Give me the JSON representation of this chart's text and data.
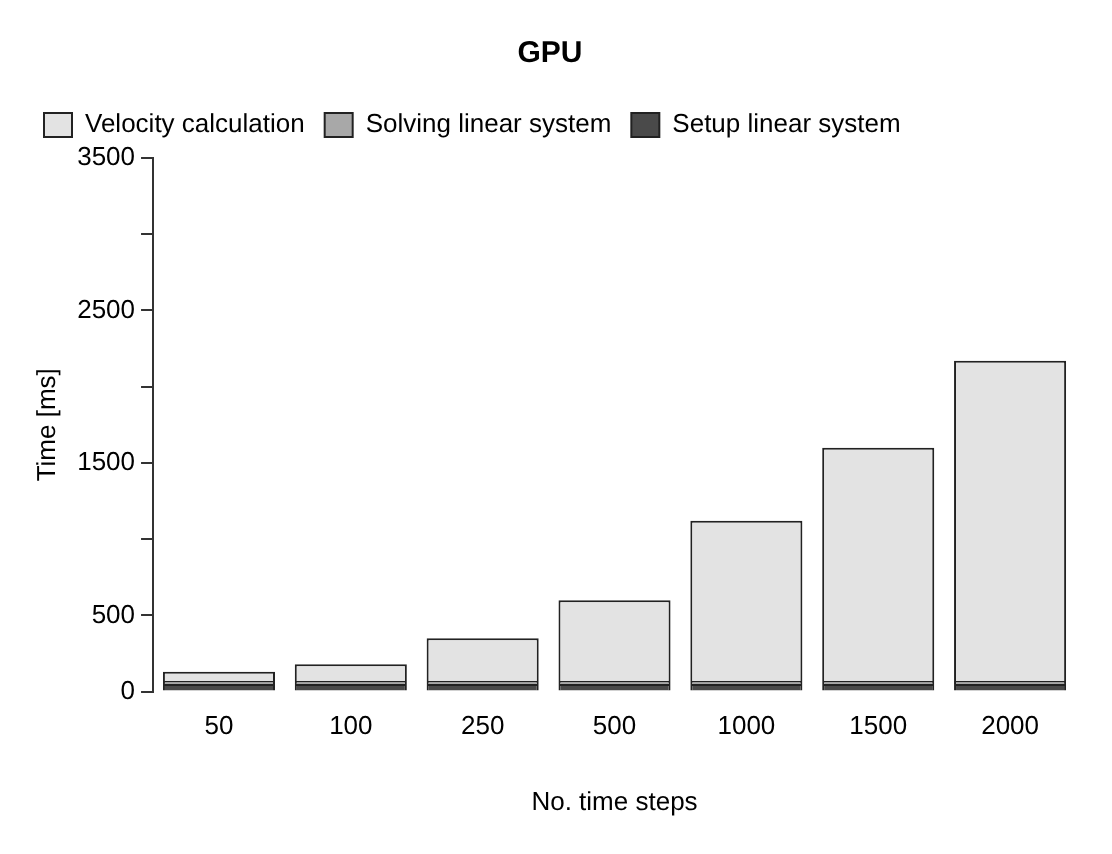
{
  "chart_data": {
    "type": "bar",
    "title": "GPU",
    "xlabel": "No. time steps",
    "ylabel": "Time [ms]",
    "categories": [
      "50",
      "100",
      "250",
      "500",
      "1000",
      "1500",
      "2000"
    ],
    "stacked": true,
    "series": [
      {
        "name": "Setup linear system",
        "color": "#4a4a4a",
        "values": [
          50,
          50,
          50,
          50,
          50,
          50,
          50
        ]
      },
      {
        "name": "Solving linear system",
        "color": "#a8a8a8",
        "values": [
          20,
          20,
          20,
          20,
          20,
          20,
          20
        ]
      },
      {
        "name": "Velocity calculation",
        "color": "#e3e3e3",
        "values": [
          60,
          110,
          280,
          530,
          1050,
          1530,
          2100
        ]
      }
    ],
    "ylim": [
      0,
      3500
    ],
    "yticks": [
      0,
      500,
      {
        "value": 1000,
        "label": null
      },
      1500,
      {
        "value": 2000,
        "label": null
      },
      2500,
      {
        "value": 3000,
        "label": null
      },
      3500
    ],
    "grid": false,
    "legend": "top left"
  }
}
